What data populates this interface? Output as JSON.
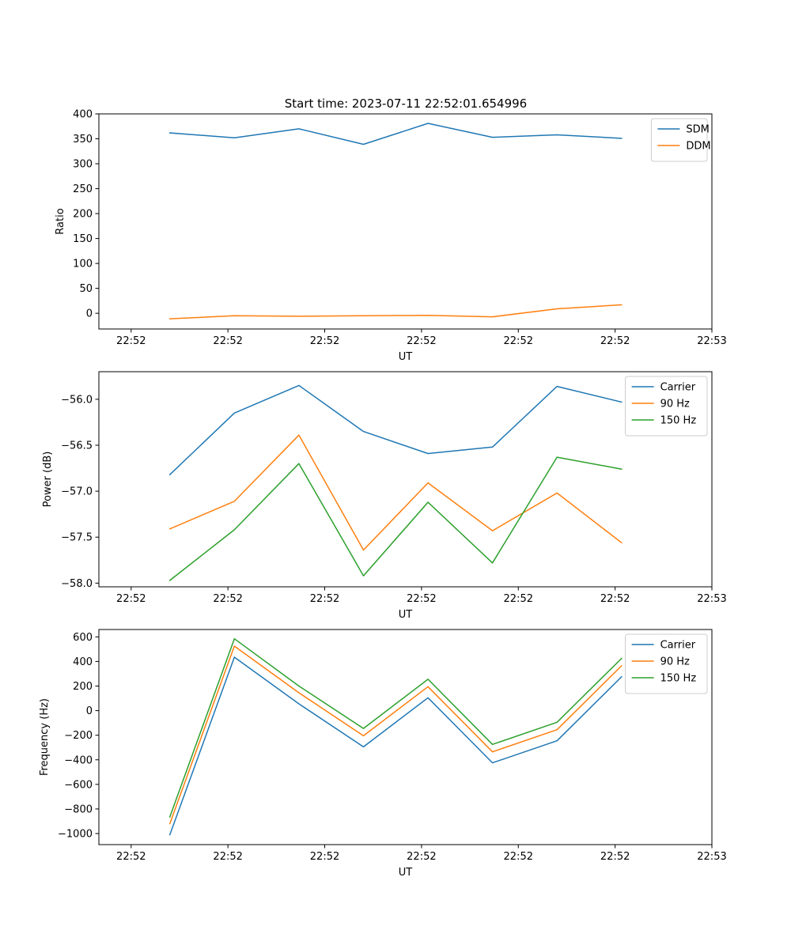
{
  "figure_title": "Start time: 2023-07-11 22:52:01.654996",
  "chart_data": [
    {
      "type": "line",
      "title": "Start time: 2023-07-11 22:52:01.654996",
      "xlabel": "UT",
      "ylabel": "Ratio",
      "x": [
        1.1,
        2.1,
        3.1,
        4.1,
        5.1,
        6.1,
        7.1,
        8.1
      ],
      "xlim": [
        0,
        9.5
      ],
      "xticks": [
        0.5,
        2.0,
        3.5,
        5.0,
        6.5,
        8.0,
        9.5
      ],
      "xtick_labels": [
        "22:52",
        "22:52",
        "22:52",
        "22:52",
        "22:52",
        "22:52",
        "22:53"
      ],
      "ylim": [
        -31.5,
        400
      ],
      "yticks": [
        0,
        50,
        100,
        150,
        200,
        250,
        300,
        350,
        400
      ],
      "ytick_labels": [
        "0",
        "50",
        "100",
        "150",
        "200",
        "250",
        "300",
        "350",
        "400"
      ],
      "legend_position": "top-right",
      "series": [
        {
          "name": "SDM",
          "color": "#1f77b4",
          "values": [
            362,
            352,
            370,
            339,
            381,
            353,
            358,
            351
          ]
        },
        {
          "name": "DDM",
          "color": "#ff7f0e",
          "values": [
            -11,
            -5,
            -6,
            -5,
            -4,
            -7,
            9,
            17
          ]
        }
      ]
    },
    {
      "type": "line",
      "title": "",
      "xlabel": "UT",
      "ylabel": "Power (dB)",
      "x": [
        1.1,
        2.1,
        3.1,
        4.1,
        5.1,
        6.1,
        7.1,
        8.1
      ],
      "xlim": [
        0,
        9.5
      ],
      "xticks": [
        0.5,
        2.0,
        3.5,
        5.0,
        6.5,
        8.0,
        9.5
      ],
      "xtick_labels": [
        "22:52",
        "22:52",
        "22:52",
        "22:52",
        "22:52",
        "22:52",
        "22:53"
      ],
      "ylim": [
        -58.04,
        -55.7
      ],
      "yticks": [
        -58.0,
        -57.5,
        -57.0,
        -56.5,
        -56.0
      ],
      "ytick_labels": [
        "−58.0",
        "−57.5",
        "−57.0",
        "−56.5",
        "−56.0"
      ],
      "legend_position": "top-right",
      "series": [
        {
          "name": "Carrier",
          "color": "#1f77b4",
          "values": [
            -56.82,
            -56.15,
            -55.85,
            -56.35,
            -56.59,
            -56.52,
            -55.86,
            -56.03
          ]
        },
        {
          "name": "90 Hz",
          "color": "#ff7f0e",
          "values": [
            -57.41,
            -57.11,
            -56.39,
            -57.64,
            -56.91,
            -57.43,
            -57.02,
            -57.56
          ]
        },
        {
          "name": "150 Hz",
          "color": "#2ca02c",
          "values": [
            -57.97,
            -57.42,
            -56.7,
            -57.92,
            -57.12,
            -57.78,
            -56.63,
            -56.76
          ]
        }
      ]
    },
    {
      "type": "line",
      "title": "",
      "xlabel": "UT",
      "ylabel": "Frequency (Hz)",
      "x": [
        1.1,
        2.1,
        3.1,
        4.1,
        5.1,
        6.1,
        7.1,
        8.1
      ],
      "xlim": [
        0,
        9.5
      ],
      "xticks": [
        0.5,
        2.0,
        3.5,
        5.0,
        6.5,
        8.0,
        9.5
      ],
      "xtick_labels": [
        "22:52",
        "22:52",
        "22:52",
        "22:52",
        "22:52",
        "22:52",
        "22:53"
      ],
      "ylim": [
        -1090,
        660
      ],
      "yticks": [
        -1000,
        -800,
        -600,
        -400,
        -200,
        0,
        200,
        400,
        600
      ],
      "ytick_labels": [
        "−1000",
        "−800",
        "−600",
        "−400",
        "−200",
        "0",
        "200",
        "400",
        "600"
      ],
      "legend_position": "top-right",
      "series": [
        {
          "name": "Carrier",
          "color": "#1f77b4",
          "values": [
            -1010,
            435,
            55,
            -295,
            105,
            -425,
            -245,
            275
          ]
        },
        {
          "name": "90 Hz",
          "color": "#ff7f0e",
          "values": [
            -920,
            525,
            145,
            -205,
            195,
            -335,
            -155,
            365
          ]
        },
        {
          "name": "150 Hz",
          "color": "#2ca02c",
          "values": [
            -865,
            585,
            200,
            -145,
            255,
            -275,
            -95,
            425
          ]
        }
      ]
    }
  ]
}
